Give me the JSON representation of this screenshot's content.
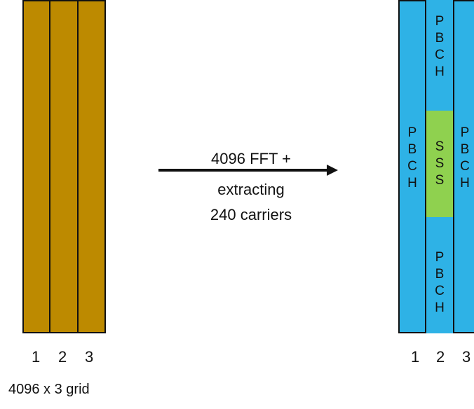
{
  "left_grid": {
    "column_labels": [
      "1",
      "2",
      "3"
    ],
    "caption": "4096 x 3 grid",
    "fill_color": "#bd8a00"
  },
  "arrow": {
    "line1": "4096 FFT +",
    "line2": "extracting",
    "line3": "240 carriers"
  },
  "right_grid": {
    "column_labels": [
      "1",
      "2",
      "3"
    ],
    "left_column_text": [
      "P",
      "B",
      "C",
      "H"
    ],
    "right_column_text": [
      "P",
      "B",
      "C",
      "H"
    ],
    "middle_top_text": [
      "P",
      "B",
      "C",
      "H"
    ],
    "middle_center_text": [
      "S",
      "S",
      "S"
    ],
    "middle_bottom_text": [
      "P",
      "B",
      "C",
      "H"
    ],
    "pbch_color": "#2eb2e6",
    "sss_color": "#8fd14f"
  }
}
